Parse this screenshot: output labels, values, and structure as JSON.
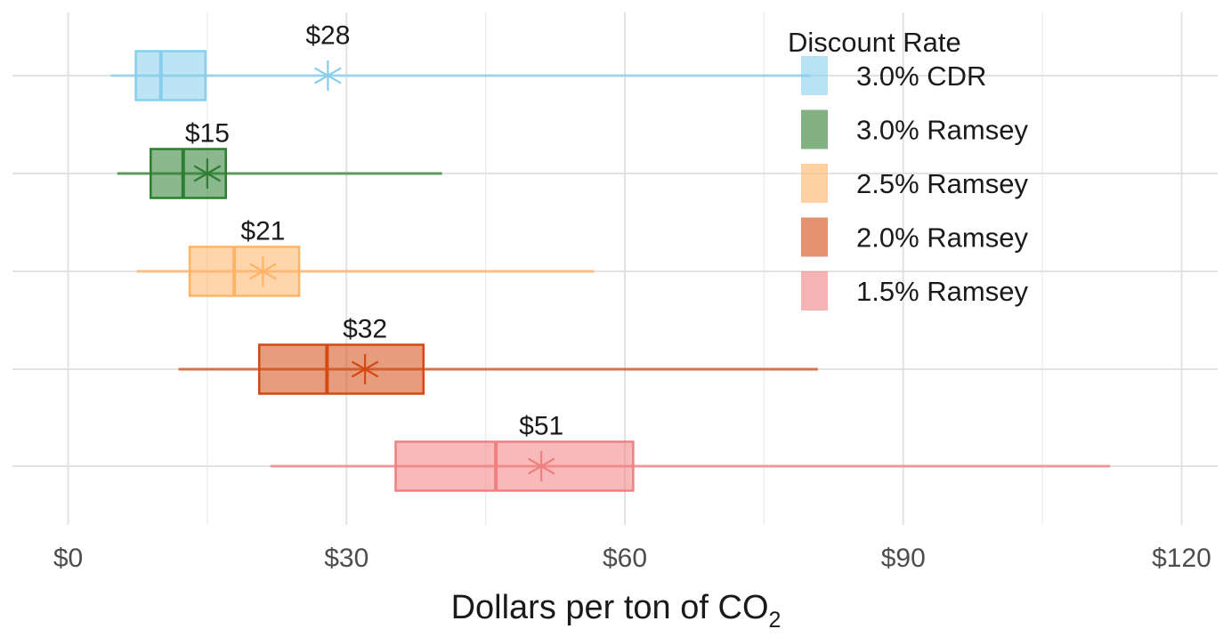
{
  "chart_data": {
    "type": "boxplot",
    "orientation": "horizontal",
    "title": "",
    "xlabel": "Dollars per ton of CO",
    "xlabel_subscript": "2",
    "ylabel": "",
    "xlim": [
      -6,
      124
    ],
    "x_ticks": [
      0,
      30,
      60,
      90,
      120
    ],
    "x_tick_labels": [
      "$0",
      "$30",
      "$60",
      "$90",
      "$120"
    ],
    "grid": true,
    "legend": {
      "title": "Discount Rate",
      "position": "top-right"
    },
    "series": [
      {
        "name": "3.0% CDR",
        "color": "#87CEEB",
        "whisker_low": 4.6,
        "q1": 7.3,
        "median": 10.0,
        "q3": 14.8,
        "whisker_high": 80.0,
        "mean": 28,
        "mean_label": "$28"
      },
      {
        "name": "3.0% Ramsey",
        "color": "#2E7D32",
        "whisker_low": 5.3,
        "q1": 8.9,
        "median": 12.4,
        "q3": 17.0,
        "whisker_high": 40.3,
        "mean": 15,
        "mean_label": "$15"
      },
      {
        "name": "2.5% Ramsey",
        "color": "#FFB366",
        "whisker_low": 7.4,
        "q1": 13.1,
        "median": 17.9,
        "q3": 24.9,
        "whisker_high": 56.7,
        "mean": 21,
        "mean_label": "$21"
      },
      {
        "name": "2.0% Ramsey",
        "color": "#D44A12",
        "whisker_low": 11.9,
        "q1": 20.6,
        "median": 27.9,
        "q3": 38.3,
        "whisker_high": 80.8,
        "mean": 32,
        "mean_label": "$32"
      },
      {
        "name": "1.5% Ramsey",
        "color": "#F08080",
        "whisker_low": 21.8,
        "q1": 35.3,
        "median": 46.1,
        "q3": 60.9,
        "whisker_high": 112.3,
        "mean": 51,
        "mean_label": "$51"
      }
    ]
  }
}
